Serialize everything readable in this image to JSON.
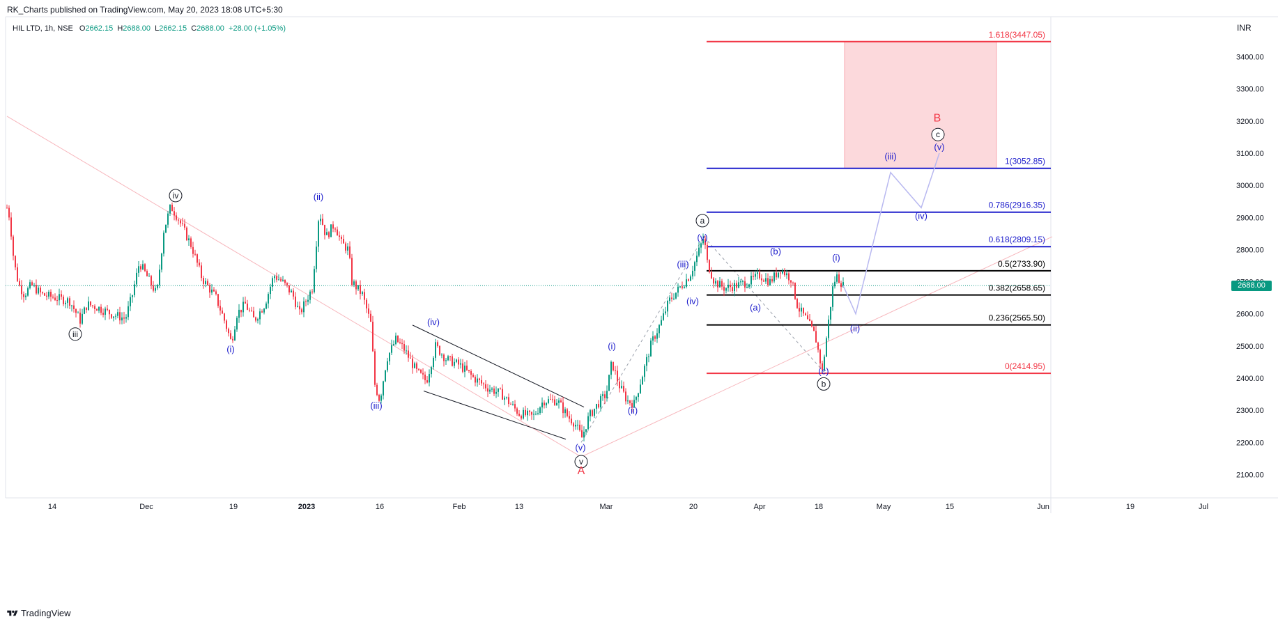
{
  "header": {
    "published": "RK_Charts published on TradingView.com, May 20, 2023 18:08 UTC+5:30"
  },
  "ohlc": {
    "symbol": "HIL LTD, 1h, NSE",
    "o_label": "O",
    "o": "2662.15",
    "h_label": "H",
    "h": "2688.00",
    "l_label": "L",
    "l": "2662.15",
    "c_label": "C",
    "c": "2688.00",
    "change": "+28.00 (+1.05%)"
  },
  "axis_unit": "INR",
  "last_price": "2688.00",
  "footer": {
    "brand": "TradingView"
  },
  "colors": {
    "up": "#089981",
    "down": "#f23645",
    "fib_red": "#f23645",
    "fib_blue": "#1e1ecc",
    "fib_black": "#000000",
    "wave_blue": "#1e1ecc",
    "zone_fill": "#fcd9dc"
  },
  "chart_data": {
    "type": "candlestick",
    "title": "HIL LTD, 1h, NSE",
    "ylabel": "INR",
    "ylim": [
      2040,
      3520
    ],
    "y_ticks": [
      "3400.00",
      "3300.00",
      "3200.00",
      "3100.00",
      "3000.00",
      "2900.00",
      "2800.00",
      "2700.00",
      "2600.00",
      "2500.00",
      "2400.00",
      "2300.00",
      "2200.00",
      "2100.00"
    ],
    "x_ticks": [
      "14",
      "Dec",
      "19",
      "2023",
      "16",
      "Feb",
      "13",
      "Mar",
      "20",
      "Apr",
      "18",
      "May",
      "15",
      "Jun",
      "19",
      "Jul"
    ],
    "price_path": [
      [
        0,
        2920
      ],
      [
        6,
        2960
      ],
      [
        14,
        2900
      ],
      [
        20,
        2760
      ],
      [
        27,
        2690
      ],
      [
        35,
        2660
      ],
      [
        45,
        2690
      ],
      [
        60,
        2660
      ],
      [
        80,
        2650
      ],
      [
        100,
        2640
      ],
      [
        115,
        2580
      ],
      [
        125,
        2630
      ],
      [
        140,
        2620
      ],
      [
        160,
        2600
      ],
      [
        180,
        2585
      ],
      [
        190,
        2660
      ],
      [
        200,
        2760
      ],
      [
        215,
        2700
      ],
      [
        225,
        2660
      ],
      [
        235,
        2860
      ],
      [
        245,
        2935
      ],
      [
        255,
        2900
      ],
      [
        275,
        2810
      ],
      [
        290,
        2710
      ],
      [
        310,
        2650
      ],
      [
        322,
        2580
      ],
      [
        332,
        2510
      ],
      [
        340,
        2600
      ],
      [
        352,
        2630
      ],
      [
        365,
        2580
      ],
      [
        380,
        2630
      ],
      [
        393,
        2720
      ],
      [
        405,
        2700
      ],
      [
        420,
        2660
      ],
      [
        430,
        2600
      ],
      [
        448,
        2680
      ],
      [
        458,
        2920
      ],
      [
        468,
        2840
      ],
      [
        480,
        2880
      ],
      [
        490,
        2820
      ],
      [
        500,
        2800
      ],
      [
        505,
        2700
      ],
      [
        520,
        2660
      ],
      [
        532,
        2570
      ],
      [
        538,
        2380
      ],
      [
        545,
        2330
      ],
      [
        555,
        2460
      ],
      [
        568,
        2520
      ],
      [
        580,
        2490
      ],
      [
        598,
        2420
      ],
      [
        612,
        2390
      ],
      [
        625,
        2500
      ],
      [
        640,
        2460
      ],
      [
        660,
        2440
      ],
      [
        680,
        2400
      ],
      [
        700,
        2370
      ],
      [
        720,
        2350
      ],
      [
        745,
        2290
      ],
      [
        765,
        2280
      ],
      [
        780,
        2330
      ],
      [
        800,
        2330
      ],
      [
        815,
        2280
      ],
      [
        825,
        2260
      ],
      [
        835,
        2215
      ],
      [
        845,
        2280
      ],
      [
        858,
        2320
      ],
      [
        870,
        2350
      ],
      [
        878,
        2450
      ],
      [
        888,
        2380
      ],
      [
        900,
        2330
      ],
      [
        910,
        2320
      ],
      [
        922,
        2410
      ],
      [
        935,
        2510
      ],
      [
        948,
        2570
      ],
      [
        960,
        2640
      ],
      [
        975,
        2680
      ],
      [
        990,
        2720
      ],
      [
        1002,
        2790
      ],
      [
        1010,
        2840
      ],
      [
        1015,
        2760
      ],
      [
        1025,
        2700
      ],
      [
        1040,
        2680
      ],
      [
        1060,
        2690
      ],
      [
        1075,
        2700
      ],
      [
        1090,
        2720
      ],
      [
        1105,
        2700
      ],
      [
        1120,
        2740
      ],
      [
        1135,
        2710
      ],
      [
        1145,
        2620
      ],
      [
        1158,
        2580
      ],
      [
        1170,
        2530
      ],
      [
        1180,
        2420
      ],
      [
        1188,
        2560
      ],
      [
        1195,
        2680
      ],
      [
        1200,
        2720
      ],
      [
        1210,
        2688
      ]
    ],
    "fib_levels": [
      {
        "ratio": "1.618",
        "label": "1.618(3447.05)",
        "price": 3447.05,
        "color": "red"
      },
      {
        "ratio": "1",
        "label": "1(3052.85)",
        "price": 3052.85,
        "color": "blue"
      },
      {
        "ratio": "0.786",
        "label": "0.786(2916.35)",
        "price": 2916.35,
        "color": "blue"
      },
      {
        "ratio": "0.618",
        "label": "0.618(2809.15)",
        "price": 2809.15,
        "color": "blue"
      },
      {
        "ratio": "0.5",
        "label": "0.5(2733.90)",
        "price": 2733.9,
        "color": "black"
      },
      {
        "ratio": "0.382",
        "label": "0.382(2658.65)",
        "price": 2658.65,
        "color": "black"
      },
      {
        "ratio": "0.236",
        "label": "0.236(2565.50)",
        "price": 2565.5,
        "color": "black"
      },
      {
        "ratio": "0",
        "label": "0(2414.95)",
        "price": 2414.95,
        "color": "red"
      }
    ],
    "wave_labels_blue": [
      {
        "text": "(ii)",
        "x": 457,
        "price": 2955
      },
      {
        "text": "(i)",
        "x": 331,
        "price": 2480
      },
      {
        "text": "(iii)",
        "x": 540,
        "price": 2305
      },
      {
        "text": "(iv)",
        "x": 622,
        "price": 2565
      },
      {
        "text": "(v)",
        "x": 833,
        "price": 2175
      },
      {
        "text": "(i)",
        "x": 878,
        "price": 2490
      },
      {
        "text": "(ii)",
        "x": 908,
        "price": 2290
      },
      {
        "text": "(iii)",
        "x": 980,
        "price": 2745
      },
      {
        "text": "(iv)",
        "x": 994,
        "price": 2630
      },
      {
        "text": "(v)",
        "x": 1008,
        "price": 2828
      },
      {
        "text": "(b)",
        "x": 1113,
        "price": 2785
      },
      {
        "text": "(a)",
        "x": 1084,
        "price": 2610
      },
      {
        "text": "(c)",
        "x": 1182,
        "price": 2412
      },
      {
        "text": "(i)",
        "x": 1200,
        "price": 2765
      },
      {
        "text": "(ii)",
        "x": 1227,
        "price": 2545
      },
      {
        "text": "(iii)",
        "x": 1278,
        "price": 3080
      },
      {
        "text": "(iv)",
        "x": 1322,
        "price": 2895
      },
      {
        "text": "(v)",
        "x": 1348,
        "price": 3110
      }
    ],
    "wave_labels_circled": [
      {
        "text": "iii",
        "x": 108,
        "price": 2537
      },
      {
        "text": "iv",
        "x": 252,
        "price": 2968
      },
      {
        "text": "v",
        "x": 834,
        "price": 2140
      },
      {
        "text": "a",
        "x": 1008,
        "price": 2890
      },
      {
        "text": "b",
        "x": 1182,
        "price": 2382
      },
      {
        "text": "c",
        "x": 1346,
        "price": 3158
      }
    ],
    "wave_labels_red": [
      {
        "text": "A",
        "x": 834,
        "price": 2101
      },
      {
        "text": "B",
        "x": 1345,
        "price": 3199
      }
    ],
    "projection_path": [
      [
        1210,
        2688
      ],
      [
        1228,
        2600
      ],
      [
        1278,
        3040
      ],
      [
        1322,
        2930
      ],
      [
        1348,
        3100
      ]
    ],
    "target_zone": {
      "x_from": 1212,
      "x_to": 1430,
      "from_price": 3052.85,
      "to_price": 3447.05
    },
    "channel_upper": [
      [
        592,
        2565
      ],
      [
        838,
        2310
      ]
    ],
    "channel_lower": [
      [
        608,
        2360
      ],
      [
        812,
        2210
      ]
    ],
    "trendline_down": [
      [
        10,
        3215
      ],
      [
        834,
        2155
      ]
    ],
    "trendline_up": [
      [
        834,
        2155
      ],
      [
        1510,
        2840
      ]
    ],
    "zigzag_dashed": [
      [
        834,
        2200
      ],
      [
        1010,
        2840
      ],
      [
        1182,
        2420
      ]
    ]
  }
}
